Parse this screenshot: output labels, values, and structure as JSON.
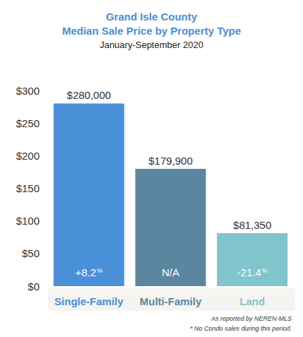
{
  "chart_data": {
    "type": "bar",
    "title": "Grand Isle County\nMedian Sale Price by Property Type",
    "subtitle": "January-September 2020",
    "categories": [
      "Single-Family",
      "Multi-Family",
      "Land"
    ],
    "values": [
      280,
      179.9,
      81.35
    ],
    "value_labels": [
      "$280,000",
      "$179,900",
      "$81,350"
    ],
    "annotations": [
      "+8.2%",
      "N/A",
      "-21.4%"
    ],
    "colors": [
      "#4a90d9",
      "#5b86a0",
      "#7fc5cb"
    ],
    "ylim": [
      0,
      300
    ],
    "yticks": [
      {
        "value": 0,
        "label": "$0"
      },
      {
        "value": 50,
        "label": "$50"
      },
      {
        "value": 100,
        "label": "$100"
      },
      {
        "value": 150,
        "label": "$150"
      },
      {
        "value": 200,
        "label": "$200"
      },
      {
        "value": 250,
        "label": "$250"
      },
      {
        "value": 300,
        "label": "$300"
      }
    ],
    "grid": false,
    "data_labels": true,
    "footnotes": [
      "As reported by NEREN-MLS",
      "* No Condo sales during this period."
    ]
  }
}
